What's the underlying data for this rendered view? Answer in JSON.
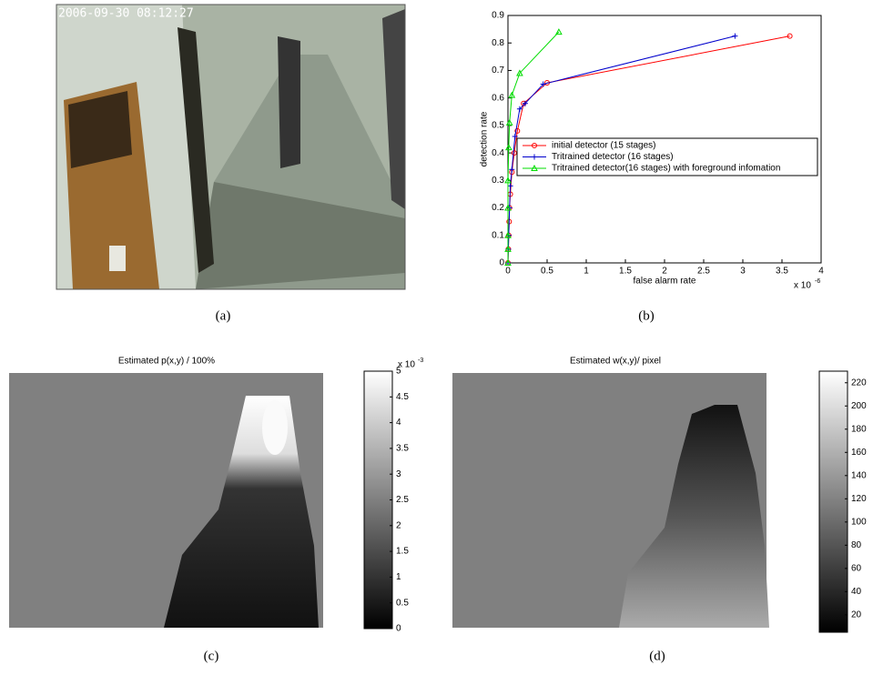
{
  "photo": {
    "timestamp": "2006-09-30 08:12:27"
  },
  "captions": [
    "(a)",
    "(b)",
    "(c)",
    "(d)"
  ],
  "chart_data": [
    {
      "type": "line",
      "x_label": "false alarm rate",
      "y_label": "detection rate",
      "x_multiplier": "x 10",
      "x_multiplier_exp": "-6",
      "xlim": [
        0,
        4
      ],
      "xticks": [
        0,
        0.5,
        1,
        1.5,
        2,
        2.5,
        3,
        3.5,
        4
      ],
      "ylim": [
        0,
        0.9
      ],
      "yticks": [
        0,
        0.1,
        0.2,
        0.3,
        0.4,
        0.5,
        0.6,
        0.7,
        0.8,
        0.9
      ],
      "series": [
        {
          "name": "initial detector (15 stages)",
          "color": "#ff0000",
          "marker": "circle",
          "x": [
            0,
            0.005,
            0.01,
            0.015,
            0.02,
            0.03,
            0.05,
            0.08,
            0.12,
            0.2,
            0.5,
            3.6
          ],
          "values": [
            0,
            0.05,
            0.1,
            0.15,
            0.2,
            0.25,
            0.33,
            0.4,
            0.48,
            0.58,
            0.655,
            0.825
          ]
        },
        {
          "name": "Tritrained detector (16 stages)",
          "color": "#0000cc",
          "marker": "plus",
          "x": [
            0,
            0.005,
            0.01,
            0.02,
            0.03,
            0.05,
            0.09,
            0.15,
            0.22,
            0.45,
            2.9
          ],
          "values": [
            0,
            0.05,
            0.1,
            0.2,
            0.28,
            0.34,
            0.46,
            0.56,
            0.58,
            0.65,
            0.825
          ]
        },
        {
          "name": "Tritrained detector(16 stages) with foreground infomation",
          "color": "#00dd00",
          "marker": "triangle",
          "x": [
            0,
            0,
            0,
            0,
            0,
            0.01,
            0.02,
            0.05,
            0.15,
            0.65
          ],
          "values": [
            0,
            0.05,
            0.1,
            0.2,
            0.3,
            0.42,
            0.51,
            0.61,
            0.69,
            0.84
          ]
        }
      ]
    },
    {
      "type": "heatmap",
      "title": "Estimated p(x,y) / 100%",
      "colorbar_multiplier": "x 10",
      "colorbar_multiplier_exp": "-3",
      "zlim": [
        0,
        5
      ],
      "zticks": [
        0,
        0.5,
        1,
        1.5,
        2,
        2.5,
        3,
        3.5,
        4,
        4.5,
        5
      ]
    },
    {
      "type": "heatmap",
      "title": "Estimated w(x,y)/ pixel",
      "zlim": [
        5,
        230
      ],
      "zticks": [
        20,
        40,
        60,
        80,
        100,
        120,
        140,
        160,
        180,
        200,
        220
      ]
    }
  ]
}
